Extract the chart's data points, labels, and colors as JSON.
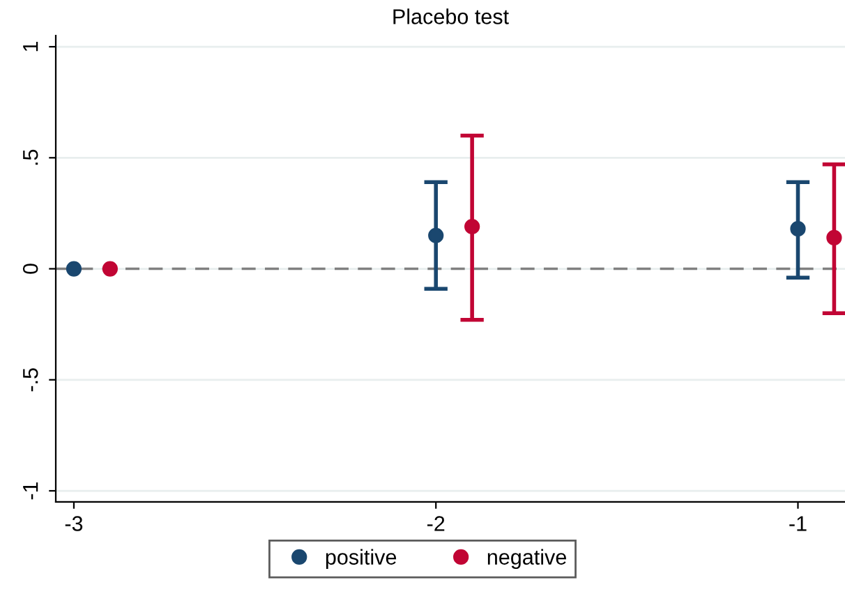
{
  "chart_data": {
    "type": "scatter",
    "title": "Placebo test",
    "series": [
      {
        "name": "positive",
        "color": "#1a476f",
        "x": [
          -3,
          -2,
          -1
        ],
        "values": [
          0,
          0.15,
          0.18
        ],
        "errors": [
          null,
          [
            -0.09,
            0.39
          ],
          [
            -0.04,
            0.39
          ]
        ]
      },
      {
        "name": "negative",
        "color": "#c10534",
        "x": [
          -2.9,
          -1.9,
          -0.9
        ],
        "values": [
          0,
          0.19,
          0.14
        ],
        "errors": [
          null,
          [
            -0.23,
            0.6
          ],
          [
            -0.2,
            0.47
          ]
        ]
      }
    ],
    "xlim": [
      -3.05,
      -0.87
    ],
    "xticks": [
      -3,
      -2,
      -1
    ],
    "ylim": [
      -1.05,
      1.05
    ],
    "yticks": [
      {
        "value": -1,
        "label": "-1"
      },
      {
        "value": -0.5,
        "label": "-.5"
      },
      {
        "value": 0,
        "label": "0"
      },
      {
        "value": 0.5,
        "label": ".5"
      },
      {
        "value": 1,
        "label": "1"
      }
    ],
    "ref_lines": [
      {
        "axis": "y",
        "value": 0,
        "color": "#808080",
        "line_style": "dashed"
      }
    ],
    "grid": "y",
    "legend": "bottom",
    "marker": "circle"
  }
}
